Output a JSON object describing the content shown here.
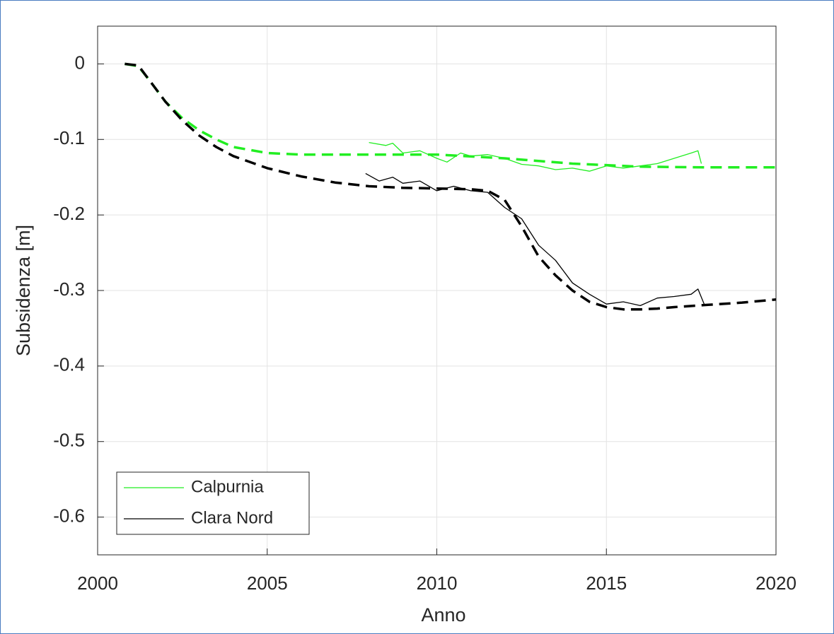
{
  "chart_data": {
    "type": "line",
    "xlabel": "Anno",
    "ylabel": "Subsidenza [m]",
    "xlim": [
      2000,
      2020
    ],
    "xticks": [
      2000,
      2005,
      2010,
      2015,
      2020
    ],
    "ylim": [
      -0.65,
      0.05
    ],
    "yticks": [
      0,
      -0.1,
      -0.2,
      -0.3,
      -0.4,
      -0.5,
      -0.6
    ],
    "grid": true,
    "legend": "lower left",
    "series": [
      {
        "name": "Calpurnia",
        "color": "#22ee22",
        "dashed": false,
        "x": [
          2008,
          2008.5,
          2008.7,
          2009,
          2009.5,
          2010,
          2010.3,
          2010.7,
          2011,
          2011.5,
          2012,
          2012.5,
          2013,
          2013.5,
          2014,
          2014.5,
          2015,
          2015.5,
          2016,
          2016.5,
          2017,
          2017.5,
          2017.7,
          2017.8
        ],
        "values": [
          -0.104,
          -0.108,
          -0.105,
          -0.118,
          -0.115,
          -0.125,
          -0.13,
          -0.118,
          -0.122,
          -0.12,
          -0.125,
          -0.133,
          -0.135,
          -0.14,
          -0.138,
          -0.142,
          -0.135,
          -0.138,
          -0.135,
          -0.132,
          -0.125,
          -0.118,
          -0.115,
          -0.132
        ]
      },
      {
        "name": "Clara Nord",
        "color": "#000000",
        "dashed": false,
        "x": [
          2007.9,
          2008.3,
          2008.7,
          2009,
          2009.5,
          2010,
          2010.5,
          2011,
          2011.5,
          2012,
          2012.5,
          2013,
          2013.5,
          2014,
          2014.5,
          2015,
          2015.5,
          2016,
          2016.5,
          2017,
          2017.5,
          2017.7,
          2017.9
        ],
        "values": [
          -0.145,
          -0.155,
          -0.15,
          -0.158,
          -0.155,
          -0.168,
          -0.162,
          -0.168,
          -0.17,
          -0.19,
          -0.205,
          -0.24,
          -0.26,
          -0.29,
          -0.305,
          -0.318,
          -0.315,
          -0.32,
          -0.31,
          -0.308,
          -0.305,
          -0.298,
          -0.32
        ]
      },
      {
        "color": "#22ee22",
        "dashed": true,
        "x": [
          2000.8,
          2001.2,
          2001.5,
          2002,
          2002.5,
          2003,
          2003.5,
          2004,
          2005,
          2006,
          2008,
          2010,
          2012,
          2014,
          2016,
          2018,
          2020
        ],
        "values": [
          0,
          -0.003,
          -0.02,
          -0.05,
          -0.072,
          -0.088,
          -0.1,
          -0.11,
          -0.118,
          -0.12,
          -0.12,
          -0.12,
          -0.125,
          -0.132,
          -0.136,
          -0.137,
          -0.137
        ]
      },
      {
        "color": "#000000",
        "dashed": true,
        "x": [
          2000.8,
          2001.2,
          2001.5,
          2002,
          2002.5,
          2003,
          2003.5,
          2004,
          2005,
          2006,
          2007,
          2008,
          2009,
          2010,
          2011,
          2011.5,
          2012,
          2012.5,
          2013,
          2013.5,
          2014,
          2014.5,
          2015,
          2015.5,
          2016,
          2016.5,
          2017,
          2018,
          2019,
          2020
        ],
        "values": [
          0,
          -0.002,
          -0.02,
          -0.05,
          -0.075,
          -0.095,
          -0.11,
          -0.122,
          -0.138,
          -0.149,
          -0.157,
          -0.162,
          -0.164,
          -0.165,
          -0.166,
          -0.168,
          -0.18,
          -0.215,
          -0.255,
          -0.28,
          -0.3,
          -0.315,
          -0.322,
          -0.325,
          -0.325,
          -0.324,
          -0.322,
          -0.319,
          -0.316,
          -0.312
        ]
      }
    ]
  }
}
